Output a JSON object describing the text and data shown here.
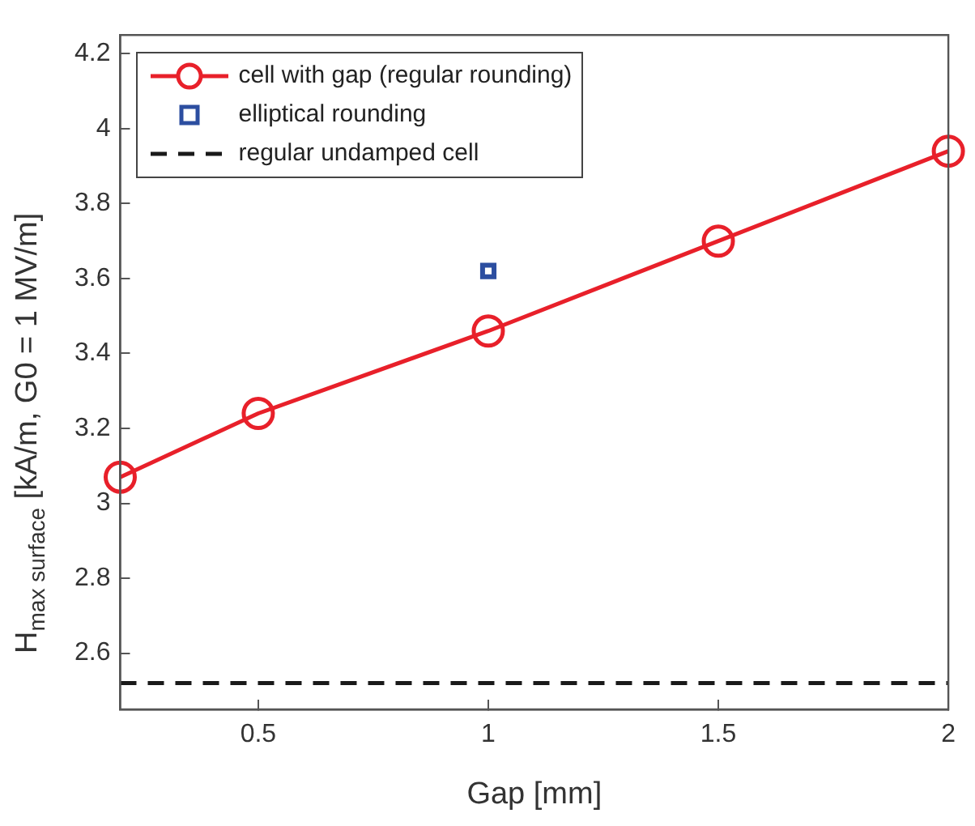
{
  "chart_data": {
    "type": "line",
    "xlabel": "Gap [mm]",
    "ylabel": "H$_{max surface}$ [kA/m, G0 = 1 MV/m]",
    "xlim": [
      0.2,
      2
    ],
    "xticks": [
      0.5,
      1,
      1.5,
      2
    ],
    "ylim": [
      2.45,
      4.25
    ],
    "yticks": [
      2.6,
      2.8,
      3,
      3.2,
      3.4,
      3.6,
      3.8,
      4,
      4.2
    ],
    "grid": false,
    "legend": "top left",
    "series": [
      {
        "name": "cell with gap (regular rounding)",
        "color": "#e8202a",
        "marker": "circle",
        "line_style": "solid",
        "x": [
          0.2,
          0.5,
          1,
          1.5,
          2
        ],
        "values": [
          3.07,
          3.24,
          3.46,
          3.7,
          3.94
        ]
      },
      {
        "name": "elliptical rounding",
        "type": "scatter",
        "color": "#2c4ea0",
        "marker": "square",
        "x": [
          1
        ],
        "values": [
          3.62
        ]
      },
      {
        "name": "regular undamped cell",
        "color": "#1a1a1a",
        "marker": "none",
        "line_style": "dashed",
        "x": [
          0.2,
          2
        ],
        "values": [
          2.52,
          2.52
        ]
      }
    ]
  }
}
